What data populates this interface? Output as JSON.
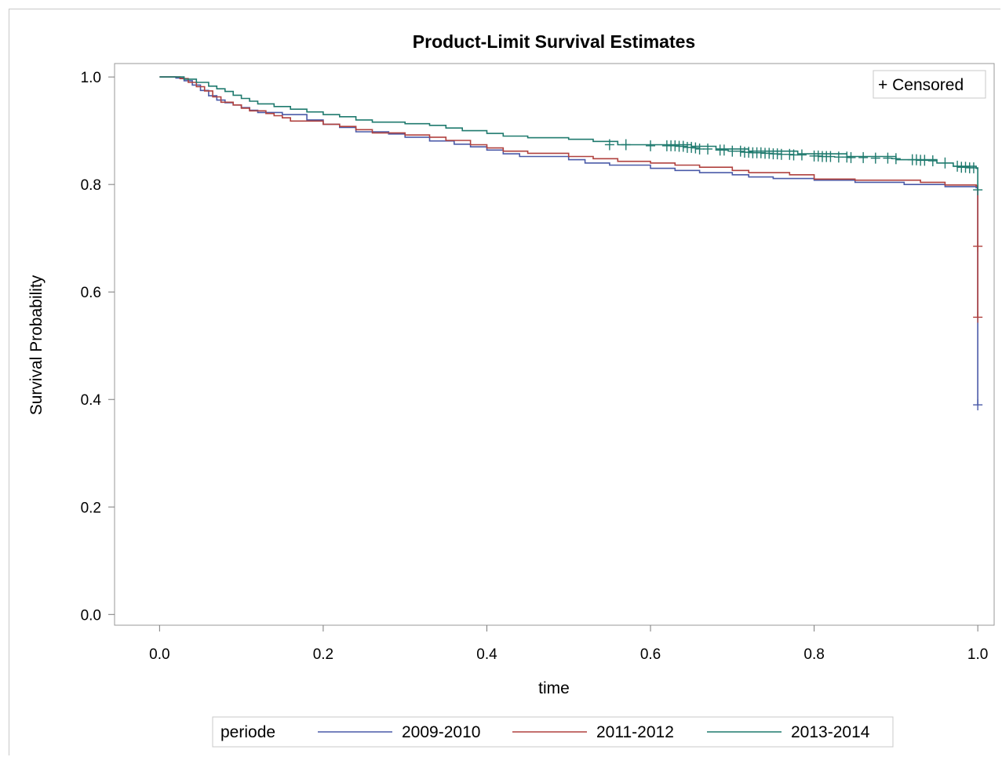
{
  "chart_data": {
    "type": "line",
    "title": "Product-Limit Survival Estimates",
    "xlabel": "time",
    "ylabel": "Survival Probability",
    "xlim": [
      -0.055,
      1.02
    ],
    "ylim": [
      -0.02,
      1.025
    ],
    "xticks": [
      "0.0",
      "0.2",
      "0.4",
      "0.6",
      "0.8",
      "1.0"
    ],
    "yticks": [
      "0.0",
      "0.2",
      "0.4",
      "0.6",
      "0.8",
      "1.0"
    ],
    "grid": false,
    "censored_legend": "+ Censored",
    "censored_legend_position": "top-right",
    "legend_title": "periode",
    "legend_position": "bottom",
    "series": [
      {
        "name": "2009-2010",
        "color": "#4a5aa8",
        "steps": [
          [
            0.0,
            1.0
          ],
          [
            0.02,
            0.998
          ],
          [
            0.03,
            0.993
          ],
          [
            0.04,
            0.985
          ],
          [
            0.05,
            0.975
          ],
          [
            0.06,
            0.965
          ],
          [
            0.07,
            0.957
          ],
          [
            0.08,
            0.952
          ],
          [
            0.09,
            0.948
          ],
          [
            0.1,
            0.943
          ],
          [
            0.11,
            0.938
          ],
          [
            0.12,
            0.934
          ],
          [
            0.15,
            0.93
          ],
          [
            0.18,
            0.92
          ],
          [
            0.2,
            0.912
          ],
          [
            0.22,
            0.906
          ],
          [
            0.24,
            0.898
          ],
          [
            0.28,
            0.894
          ],
          [
            0.3,
            0.888
          ],
          [
            0.33,
            0.881
          ],
          [
            0.36,
            0.875
          ],
          [
            0.38,
            0.87
          ],
          [
            0.4,
            0.864
          ],
          [
            0.42,
            0.857
          ],
          [
            0.44,
            0.852
          ],
          [
            0.5,
            0.846
          ],
          [
            0.52,
            0.84
          ],
          [
            0.55,
            0.836
          ],
          [
            0.6,
            0.83
          ],
          [
            0.63,
            0.826
          ],
          [
            0.66,
            0.822
          ],
          [
            0.7,
            0.818
          ],
          [
            0.72,
            0.814
          ],
          [
            0.75,
            0.811
          ],
          [
            0.8,
            0.808
          ],
          [
            0.85,
            0.804
          ],
          [
            0.91,
            0.8
          ],
          [
            0.96,
            0.796
          ],
          [
            0.998,
            0.794
          ],
          [
            1.0,
            0.39
          ]
        ],
        "censored": [
          [
            1.0,
            0.39
          ]
        ]
      },
      {
        "name": "2011-2012",
        "color": "#b0413e",
        "steps": [
          [
            0.0,
            1.0
          ],
          [
            0.025,
            0.997
          ],
          [
            0.035,
            0.99
          ],
          [
            0.045,
            0.982
          ],
          [
            0.055,
            0.974
          ],
          [
            0.065,
            0.963
          ],
          [
            0.075,
            0.953
          ],
          [
            0.09,
            0.948
          ],
          [
            0.1,
            0.942
          ],
          [
            0.11,
            0.937
          ],
          [
            0.13,
            0.932
          ],
          [
            0.14,
            0.928
          ],
          [
            0.15,
            0.924
          ],
          [
            0.16,
            0.918
          ],
          [
            0.2,
            0.912
          ],
          [
            0.22,
            0.908
          ],
          [
            0.24,
            0.902
          ],
          [
            0.26,
            0.896
          ],
          [
            0.3,
            0.892
          ],
          [
            0.33,
            0.888
          ],
          [
            0.35,
            0.882
          ],
          [
            0.38,
            0.874
          ],
          [
            0.4,
            0.868
          ],
          [
            0.42,
            0.862
          ],
          [
            0.45,
            0.858
          ],
          [
            0.5,
            0.852
          ],
          [
            0.53,
            0.848
          ],
          [
            0.56,
            0.843
          ],
          [
            0.6,
            0.84
          ],
          [
            0.63,
            0.836
          ],
          [
            0.66,
            0.832
          ],
          [
            0.7,
            0.826
          ],
          [
            0.72,
            0.822
          ],
          [
            0.77,
            0.818
          ],
          [
            0.8,
            0.81
          ],
          [
            0.85,
            0.808
          ],
          [
            0.93,
            0.804
          ],
          [
            0.96,
            0.799
          ],
          [
            0.998,
            0.797
          ],
          [
            1.0,
            0.553
          ]
        ],
        "censored": [
          [
            1.0,
            0.685
          ],
          [
            1.0,
            0.553
          ]
        ]
      },
      {
        "name": "2013-2014",
        "color": "#1f7a6e",
        "steps": [
          [
            0.0,
            1.0
          ],
          [
            0.03,
            0.996
          ],
          [
            0.045,
            0.99
          ],
          [
            0.06,
            0.983
          ],
          [
            0.07,
            0.978
          ],
          [
            0.08,
            0.973
          ],
          [
            0.09,
            0.966
          ],
          [
            0.1,
            0.96
          ],
          [
            0.11,
            0.955
          ],
          [
            0.12,
            0.95
          ],
          [
            0.14,
            0.945
          ],
          [
            0.16,
            0.94
          ],
          [
            0.18,
            0.935
          ],
          [
            0.2,
            0.93
          ],
          [
            0.22,
            0.926
          ],
          [
            0.24,
            0.92
          ],
          [
            0.26,
            0.916
          ],
          [
            0.3,
            0.913
          ],
          [
            0.33,
            0.91
          ],
          [
            0.35,
            0.905
          ],
          [
            0.37,
            0.9
          ],
          [
            0.4,
            0.895
          ],
          [
            0.42,
            0.89
          ],
          [
            0.45,
            0.887
          ],
          [
            0.5,
            0.884
          ],
          [
            0.53,
            0.88
          ],
          [
            0.56,
            0.874
          ],
          [
            0.65,
            0.871
          ],
          [
            0.68,
            0.866
          ],
          [
            0.72,
            0.862
          ],
          [
            0.78,
            0.857
          ],
          [
            0.84,
            0.852
          ],
          [
            0.9,
            0.846
          ],
          [
            0.95,
            0.84
          ],
          [
            0.97,
            0.834
          ],
          [
            0.998,
            0.83
          ],
          [
            1.0,
            0.79
          ]
        ],
        "censored": [
          [
            0.55,
            0.874
          ],
          [
            0.57,
            0.874
          ],
          [
            0.6,
            0.872
          ],
          [
            0.62,
            0.872
          ],
          [
            0.625,
            0.872
          ],
          [
            0.63,
            0.872
          ],
          [
            0.635,
            0.871
          ],
          [
            0.64,
            0.871
          ],
          [
            0.645,
            0.869
          ],
          [
            0.65,
            0.869
          ],
          [
            0.655,
            0.868
          ],
          [
            0.66,
            0.866
          ],
          [
            0.67,
            0.866
          ],
          [
            0.685,
            0.864
          ],
          [
            0.69,
            0.864
          ],
          [
            0.7,
            0.862
          ],
          [
            0.71,
            0.862
          ],
          [
            0.715,
            0.86
          ],
          [
            0.72,
            0.86
          ],
          [
            0.725,
            0.859
          ],
          [
            0.73,
            0.859
          ],
          [
            0.735,
            0.859
          ],
          [
            0.74,
            0.858
          ],
          [
            0.745,
            0.858
          ],
          [
            0.75,
            0.857
          ],
          [
            0.755,
            0.857
          ],
          [
            0.76,
            0.856
          ],
          [
            0.77,
            0.856
          ],
          [
            0.775,
            0.855
          ],
          [
            0.785,
            0.855
          ],
          [
            0.8,
            0.853
          ],
          [
            0.805,
            0.853
          ],
          [
            0.81,
            0.852
          ],
          [
            0.815,
            0.852
          ],
          [
            0.82,
            0.852
          ],
          [
            0.83,
            0.851
          ],
          [
            0.84,
            0.851
          ],
          [
            0.845,
            0.85
          ],
          [
            0.86,
            0.85
          ],
          [
            0.875,
            0.849
          ],
          [
            0.89,
            0.849
          ],
          [
            0.9,
            0.848
          ],
          [
            0.92,
            0.846
          ],
          [
            0.925,
            0.846
          ],
          [
            0.93,
            0.845
          ],
          [
            0.935,
            0.845
          ],
          [
            0.945,
            0.844
          ],
          [
            0.96,
            0.84
          ],
          [
            0.975,
            0.834
          ],
          [
            0.98,
            0.832
          ],
          [
            0.985,
            0.832
          ],
          [
            0.99,
            0.831
          ],
          [
            0.995,
            0.831
          ],
          [
            1.0,
            0.79
          ]
        ]
      }
    ]
  }
}
